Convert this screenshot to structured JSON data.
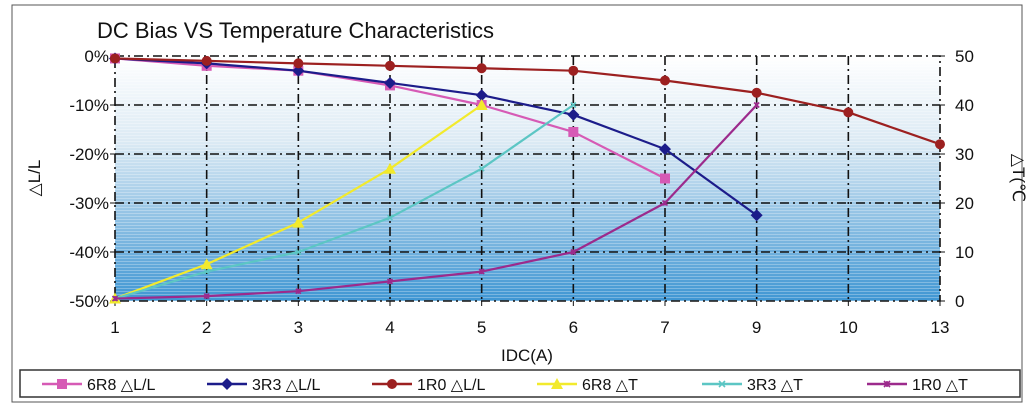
{
  "chart_data": {
    "type": "line",
    "title": "DC Bias VS Temperature Characteristics",
    "xlabel": "IDC(A)",
    "ylabel_left": "△L/L",
    "ylabel_right": "△T(℃",
    "categories": [
      "1",
      "2",
      "3",
      "4",
      "5",
      "6",
      "7",
      "9",
      "10",
      "13"
    ],
    "y_left_ticks": [
      "0%",
      "-10%",
      "-20%",
      "-30%",
      "-40%",
      "-50%"
    ],
    "y_right_ticks": [
      "50",
      "40",
      "30",
      "20",
      "10",
      "0"
    ],
    "y_left_range": [
      -50,
      0
    ],
    "y_right_range": [
      0,
      50
    ],
    "grid": true,
    "legend_position": "bottom",
    "series": [
      {
        "name": "6R8 △L/L",
        "axis": "left",
        "marker": "square",
        "color": "#d65ab5",
        "values": [
          -0.5,
          -2,
          -3,
          -6,
          -10,
          -15.5,
          -25,
          null,
          null,
          null
        ]
      },
      {
        "name": "3R3 △L/L",
        "axis": "left",
        "marker": "diamond",
        "color": "#1c1c8a",
        "values": [
          -0.5,
          -1.5,
          -3,
          -5.5,
          -8,
          -12,
          -19,
          -32.5,
          null,
          null
        ]
      },
      {
        "name": "1R0 △L/L",
        "axis": "left",
        "marker": "circle",
        "color": "#9c2020",
        "values": [
          -0.5,
          -1,
          -1.5,
          -2,
          -2.5,
          -3,
          -5,
          -7.5,
          -11.5,
          -18
        ]
      },
      {
        "name": "6R8 △T",
        "axis": "right",
        "marker": "triangle",
        "color": "#f2ea2c",
        "values": [
          0.5,
          7.5,
          16,
          27,
          40,
          null,
          null,
          null,
          null,
          null
        ]
      },
      {
        "name": "3R3 △T",
        "axis": "right",
        "marker": "x",
        "color": "#5cc6c4",
        "values": [
          0.5,
          6,
          10,
          17,
          27,
          40,
          null,
          null,
          null,
          null
        ]
      },
      {
        "name": "1R0 △T",
        "axis": "right",
        "marker": "star",
        "color": "#9c2a8c",
        "values": [
          0.5,
          1,
          2,
          4,
          6,
          10,
          20,
          40,
          null,
          null
        ]
      }
    ]
  }
}
